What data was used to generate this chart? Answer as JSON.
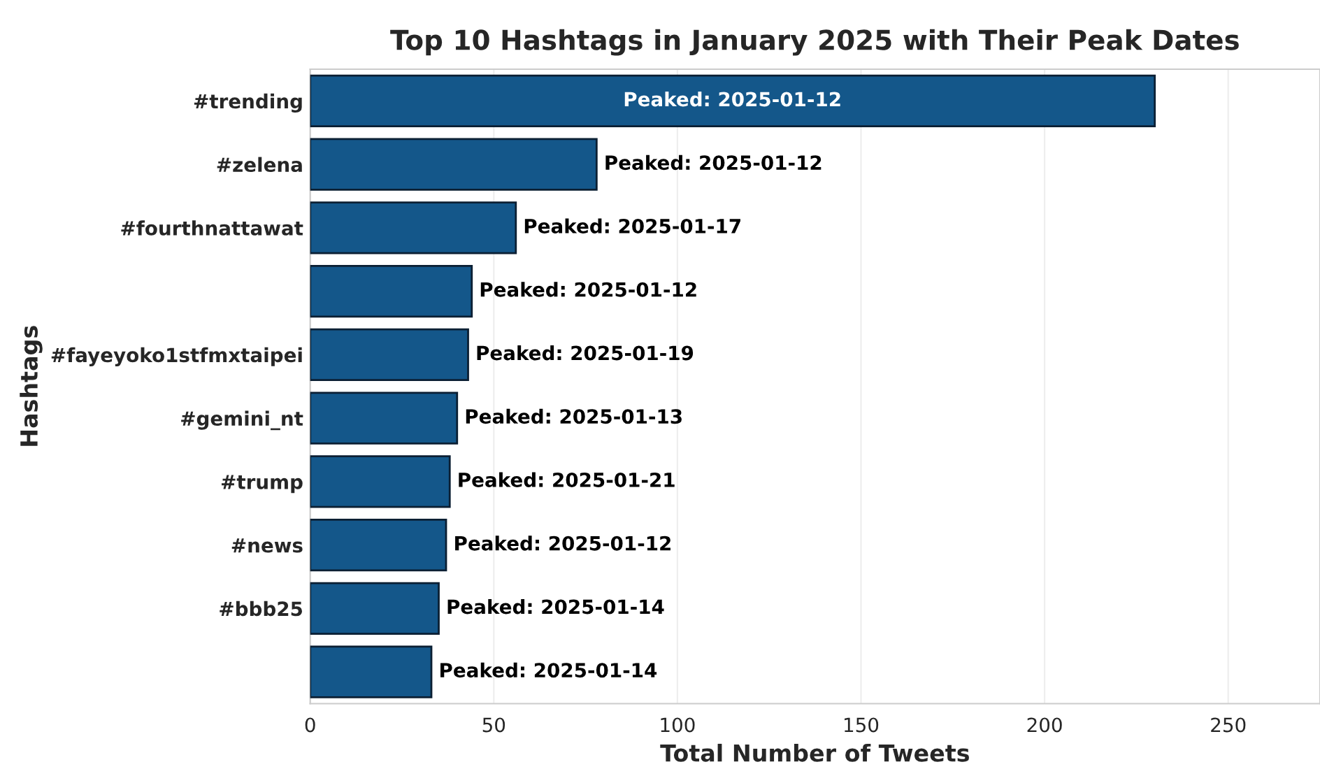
{
  "chart_data": {
    "type": "bar",
    "orientation": "horizontal",
    "title": "Top 10 Hashtags in January 2025 with Their Peak Dates",
    "xlabel": "Total Number of Tweets",
    "ylabel": "Hashtags",
    "categories": [
      "#trending",
      "#zelena",
      "#fourthnattawat",
      null,
      "#fayeyoko1stfmxtaipei",
      "#gemini_nt",
      "#trump",
      "#news",
      "#bbb25",
      null
    ],
    "values": [
      230,
      78,
      56,
      44,
      43,
      40,
      38,
      37,
      35,
      33
    ],
    "value_labels": [
      "Peaked: 2025-01-12",
      "Peaked: 2025-01-12",
      "Peaked: 2025-01-17",
      "Peaked: 2025-01-12",
      "Peaked: 2025-01-19",
      "Peaked: 2025-01-13",
      "Peaked: 2025-01-21",
      "Peaked: 2025-01-12",
      "Peaked: 2025-01-14",
      "Peaked: 2025-01-14"
    ],
    "color": "#14578a",
    "xlim": [
      0,
      275
    ],
    "xticks": [
      0,
      50,
      100,
      150,
      200,
      250
    ],
    "grid": "x",
    "legend": false
  }
}
